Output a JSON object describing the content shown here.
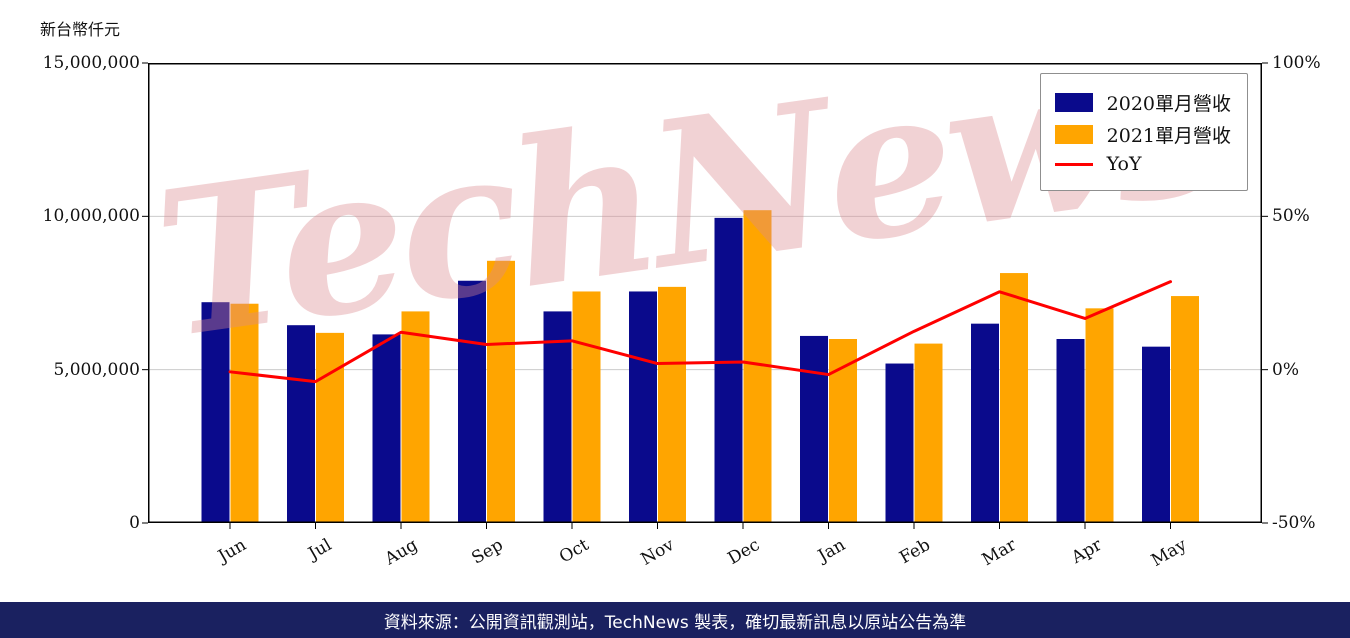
{
  "y_axis_title": "新台幣仟元",
  "watermark": "TechNews",
  "footer": "資料來源：公開資訊觀測站，TechNews 製表，確切最新訊息以原站公告為準",
  "colors": {
    "bar_2020": "#0a0a8c",
    "bar_2021": "#ffa500",
    "yoy_line": "#ff0000",
    "grid": "#cccccc",
    "axis": "#000000",
    "footer_bg": "#1a2160",
    "watermark": "#dd8a90"
  },
  "legend": [
    {
      "label": "2020單月營收",
      "color": "#0a0a8c",
      "type": "box"
    },
    {
      "label": "2021單月營收",
      "color": "#ffa500",
      "type": "box"
    },
    {
      "label": "YoY",
      "color": "#ff0000",
      "type": "line"
    }
  ],
  "chart_data": {
    "type": "bar",
    "subtype": "grouped monthly revenue bars with YoY line on secondary axis",
    "title": "新台幣仟元",
    "categories": [
      "Jun",
      "Jul",
      "Aug",
      "Sep",
      "Oct",
      "Nov",
      "Dec",
      "Jan",
      "Feb",
      "Mar",
      "Apr",
      "May"
    ],
    "series": [
      {
        "name": "2020單月營收",
        "type": "bar",
        "axis": "left",
        "color": "#0a0a8c",
        "values": [
          7200000,
          6450000,
          6150000,
          7900000,
          6900000,
          7550000,
          9950000,
          6100000,
          5200000,
          6500000,
          6000000,
          5750000
        ]
      },
      {
        "name": "2021單月營收",
        "type": "bar",
        "axis": "left",
        "color": "#ffa500",
        "values": [
          7150000,
          6200000,
          6900000,
          8550000,
          7550000,
          7700000,
          10200000,
          6000000,
          5850000,
          8150000,
          7000000,
          7400000
        ]
      },
      {
        "name": "YoY",
        "type": "line",
        "axis": "right",
        "color": "#ff0000",
        "values": [
          -0.7,
          -3.9,
          12.2,
          8.2,
          9.4,
          2.0,
          2.5,
          -1.6,
          12.5,
          25.4,
          16.7,
          28.7
        ]
      }
    ],
    "left_axis": {
      "min": 0,
      "max": 15000000,
      "ticks": [
        {
          "value": 0,
          "label": "0"
        },
        {
          "value": 5000000,
          "label": "5,000,000"
        },
        {
          "value": 10000000,
          "label": "10,000,000"
        },
        {
          "value": 15000000,
          "label": "15,000,000"
        }
      ]
    },
    "right_axis": {
      "min": -50,
      "max": 100,
      "ticks": [
        {
          "value": -50,
          "label": "-50%"
        },
        {
          "value": 0,
          "label": "0%"
        },
        {
          "value": 50,
          "label": "50%"
        },
        {
          "value": 100,
          "label": "100%"
        }
      ]
    },
    "grid": true,
    "legend_position": "top-right"
  }
}
